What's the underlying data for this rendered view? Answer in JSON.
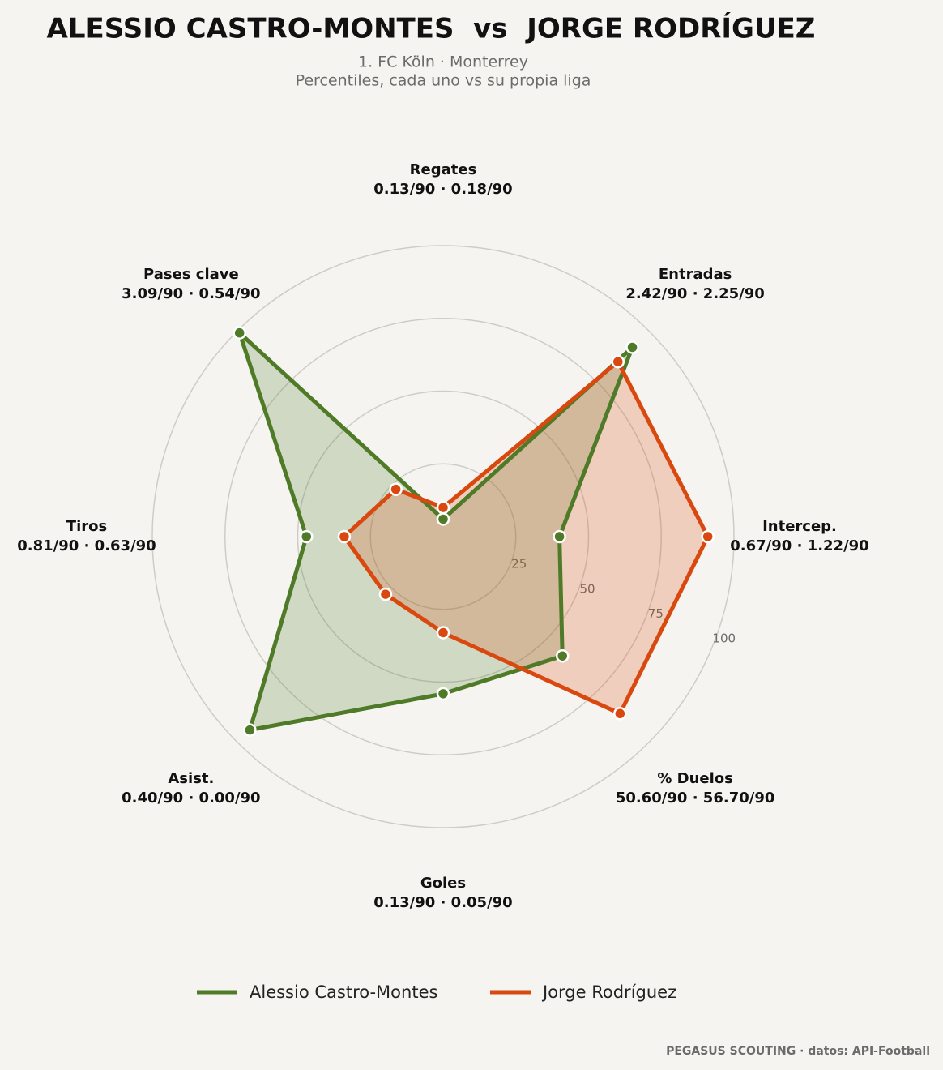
{
  "chart_data": {
    "type": "radar",
    "title": "ALESSIO CASTRO-MONTES  vs  JORGE RODRÍGUEZ",
    "subtitle": [
      "1. FC Köln · Monterrey",
      "Percentiles, cada uno vs su propia liga"
    ],
    "categories": [
      "Regates",
      "Entradas",
      "Intercep.",
      "% Duelos",
      "Goles",
      "Asist.",
      "Tiros",
      "Pases clave"
    ],
    "stat_labels": [
      "0.13/90 · 0.18/90",
      "2.42/90 · 2.25/90",
      "0.67/90 · 1.22/90",
      "50.60/90 · 56.70/90",
      "0.13/90 · 0.05/90",
      "0.40/90 · 0.00/90",
      "0.81/90 · 0.63/90",
      "3.09/90 · 0.54/90"
    ],
    "series": [
      {
        "name": "Alessio Castro-Montes",
        "color": "#4f7a28",
        "values": [
          6,
          92,
          40,
          58,
          54,
          94,
          47,
          99
        ]
      },
      {
        "name": "Jorge Rodríguez",
        "color": "#d9480f",
        "values": [
          10,
          85,
          91,
          86,
          33,
          28,
          34,
          23
        ]
      }
    ],
    "rlim": [
      0,
      100
    ],
    "rticks": [
      25,
      50,
      75,
      100
    ],
    "grid": true,
    "legend": "bottom",
    "footer": "PEGASUS SCOUTING · datos: API-Football"
  }
}
